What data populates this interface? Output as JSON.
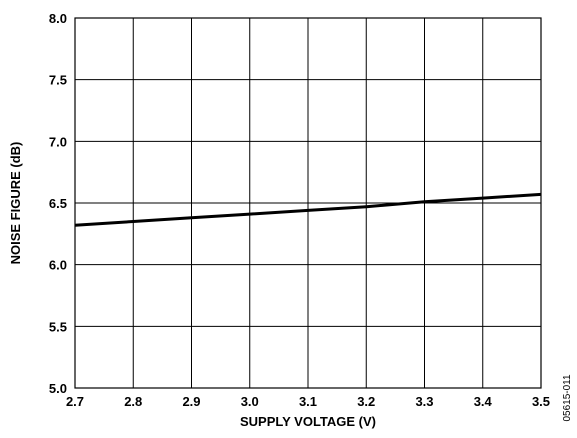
{
  "chart_data": {
    "type": "line",
    "title": "",
    "xlabel": "SUPPLY VOLTAGE (V)",
    "ylabel": "NOISE FIGURE (dB)",
    "xlim": [
      2.7,
      3.5
    ],
    "ylim": [
      5.0,
      8.0
    ],
    "xticks": [
      "2.7",
      "2.8",
      "2.9",
      "3.0",
      "3.1",
      "3.2",
      "3.3",
      "3.4",
      "3.5"
    ],
    "yticks": [
      "5.0",
      "5.5",
      "6.0",
      "6.5",
      "7.0",
      "7.5",
      "8.0"
    ],
    "grid": true,
    "series": [
      {
        "x": [
          2.7,
          2.8,
          2.9,
          3.0,
          3.1,
          3.2,
          3.3,
          3.4,
          3.5
        ],
        "y": [
          6.32,
          6.35,
          6.38,
          6.41,
          6.44,
          6.47,
          6.51,
          6.54,
          6.57
        ]
      }
    ],
    "figure_id": "05615-011"
  }
}
